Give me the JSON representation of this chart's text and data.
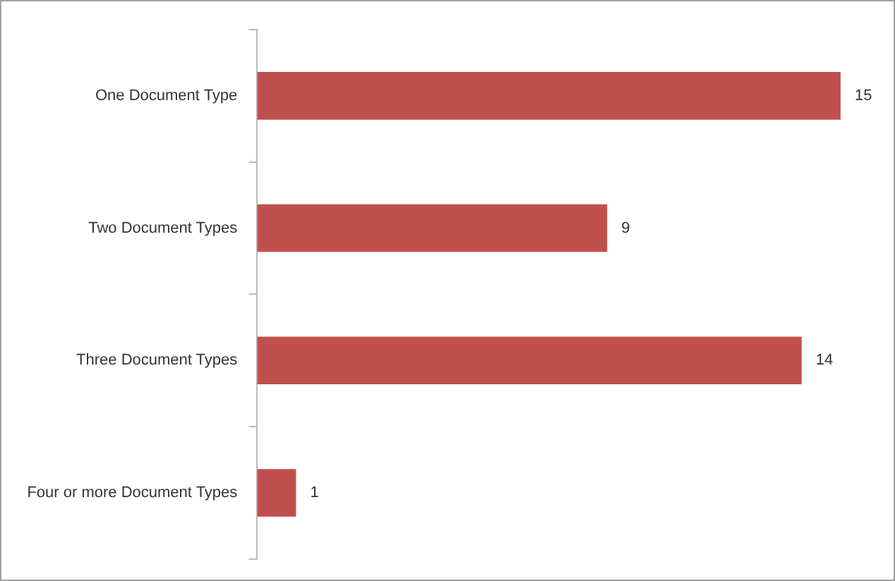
{
  "chart_data": {
    "type": "bar",
    "orientation": "horizontal",
    "categories": [
      "One Document Type",
      "Two Document Types",
      "Three Document Types",
      "Four or more Document Types"
    ],
    "values": [
      15,
      9,
      14,
      1
    ],
    "color": "#c0504d",
    "data_labels": true,
    "grid": false,
    "legend": false
  }
}
